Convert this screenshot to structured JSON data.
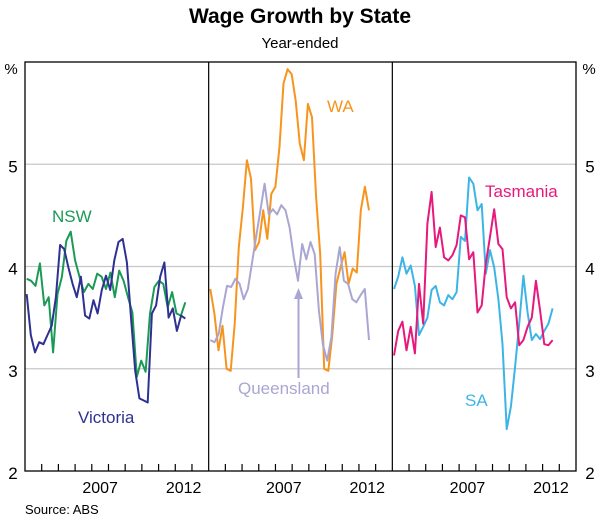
{
  "chart_data": {
    "type": "line",
    "title": "Wage Growth by State",
    "subtitle": "Year-ended",
    "ylabel_left": "%",
    "ylabel_right": "%",
    "ylim": [
      2,
      6
    ],
    "yticks": [
      2,
      3,
      4,
      5
    ],
    "xlim": [
      2003,
      2014
    ],
    "xtick_labels": [
      "2007",
      "2012"
    ],
    "grid": true,
    "source": "Source: ABS",
    "annotation_arrow": "Queensland",
    "panels": [
      {
        "series": [
          {
            "name": "NSW",
            "color": "#1b9a55",
            "x_start": 2003.1,
            "x_end": 2012.6,
            "values": [
              3.88,
              3.86,
              3.81,
              4.03,
              3.62,
              3.7,
              3.16,
              3.73,
              3.9,
              4.25,
              4.34,
              4.06,
              3.9,
              3.75,
              3.83,
              3.78,
              3.93,
              3.9,
              3.78,
              3.94,
              3.7,
              3.96,
              3.86,
              3.7,
              3.55,
              2.92,
              3.08,
              2.97,
              3.54,
              3.8,
              3.86,
              3.83,
              3.6,
              3.75,
              3.54,
              3.52,
              3.65
            ]
          },
          {
            "name": "Victoria",
            "color": "#2e3192",
            "x_start": 2003.1,
            "x_end": 2012.6,
            "values": [
              3.73,
              3.33,
              3.16,
              3.26,
              3.24,
              3.33,
              3.42,
              3.7,
              4.21,
              4.17,
              3.99,
              3.83,
              3.7,
              3.9,
              3.52,
              3.49,
              3.67,
              3.54,
              3.77,
              3.91,
              3.77,
              4.06,
              4.24,
              4.27,
              4.04,
              3.5,
              2.98,
              2.71,
              2.69,
              2.67,
              3.54,
              3.62,
              3.9,
              4.04,
              3.5,
              3.59,
              3.37,
              3.52,
              3.49
            ]
          }
        ]
      },
      {
        "series": [
          {
            "name": "WA",
            "color": "#f7941d",
            "x_start": 2003.1,
            "x_end": 2012.6,
            "values": [
              3.78,
              3.54,
              3.18,
              3.42,
              3.0,
              2.98,
              3.44,
              4.19,
              4.58,
              5.04,
              4.86,
              4.16,
              4.24,
              4.55,
              4.27,
              4.71,
              4.78,
              5.17,
              5.79,
              5.93,
              5.88,
              5.62,
              5.2,
              5.04,
              5.59,
              5.46,
              4.68,
              4.12,
              3.0,
              2.98,
              3.34,
              3.83,
              3.99,
              4.14,
              3.83,
              3.98,
              3.94,
              4.55,
              4.78,
              4.55
            ]
          },
          {
            "name": "Queensland",
            "color": "#aaa6d3",
            "x_start": 2003.1,
            "x_end": 2012.6,
            "values": [
              3.28,
              3.26,
              3.34,
              3.6,
              3.81,
              3.8,
              3.88,
              3.83,
              3.68,
              3.78,
              4.04,
              4.3,
              4.55,
              4.81,
              4.51,
              4.56,
              4.51,
              4.6,
              4.55,
              4.38,
              4.09,
              3.86,
              4.22,
              4.07,
              4.24,
              4.12,
              3.57,
              3.23,
              3.08,
              3.31,
              3.93,
              4.19,
              3.86,
              3.83,
              3.68,
              3.65,
              3.72,
              3.78,
              3.28
            ]
          }
        ]
      },
      {
        "series": [
          {
            "name": "SA",
            "color": "#3cb5e6",
            "x_start": 2003.1,
            "x_end": 2012.6,
            "values": [
              3.78,
              3.9,
              4.09,
              3.93,
              4.01,
              3.81,
              3.33,
              3.41,
              3.5,
              3.77,
              3.81,
              3.65,
              3.62,
              3.72,
              3.68,
              3.75,
              4.29,
              4.25,
              4.87,
              4.81,
              4.55,
              4.61,
              3.93,
              4.16,
              3.99,
              3.68,
              3.24,
              2.41,
              2.63,
              3.02,
              3.44,
              3.91,
              3.55,
              3.28,
              3.34,
              3.29,
              3.37,
              3.44,
              3.59
            ]
          },
          {
            "name": "Tasmania",
            "color": "#e6197d",
            "x_start": 2003.1,
            "x_end": 2012.6,
            "values": [
              3.13,
              3.37,
              3.46,
              3.18,
              3.41,
              3.15,
              3.83,
              3.44,
              4.42,
              4.73,
              4.19,
              4.38,
              4.09,
              4.06,
              4.11,
              4.21,
              4.5,
              4.48,
              4.07,
              4.14,
              3.55,
              3.62,
              4.03,
              4.29,
              4.56,
              4.22,
              4.17,
              3.7,
              3.59,
              3.65,
              3.23,
              3.28,
              3.41,
              3.5,
              3.86,
              3.57,
              3.24,
              3.23,
              3.28
            ]
          }
        ]
      }
    ]
  }
}
